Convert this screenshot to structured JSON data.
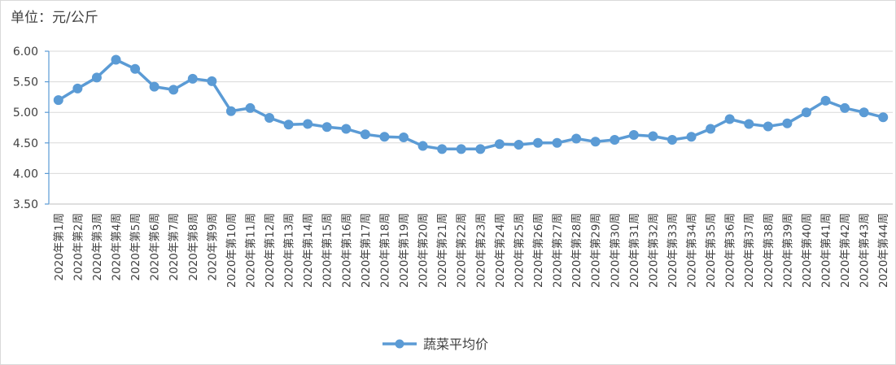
{
  "unit_label": "单位：元/公斤",
  "chart_data": {
    "type": "line",
    "title": "",
    "xlabel": "",
    "ylabel": "",
    "ylim": [
      3.5,
      6.0
    ],
    "yticks": [
      "6.00",
      "5.50",
      "5.00",
      "4.50",
      "4.00",
      "3.50"
    ],
    "grid": "horizontal",
    "legend": "bottom-center",
    "categories": [
      "2020年第1周",
      "2020年第2周",
      "2020年第3周",
      "2020年第4周",
      "2020年第5周",
      "2020年第6周",
      "2020年第7周",
      "2020年第8周",
      "2020年第9周",
      "2020年第10周",
      "2020年第11周",
      "2020年第12周",
      "2020年第13周",
      "2020年第14周",
      "2020年第15周",
      "2020年第16周",
      "2020年第17周",
      "2020年第18周",
      "2020年第19周",
      "2020年第20周",
      "2020年第21周",
      "2020年第22周",
      "2020年第23周",
      "2020年第24周",
      "2020年第25周",
      "2020年第26周",
      "2020年第27周",
      "2020年第28周",
      "2020年第29周",
      "2020年第30周",
      "2020年第31周",
      "2020年第32周",
      "2020年第33周",
      "2020年第34周",
      "2020年第35周",
      "2020年第36周",
      "2020年第37周",
      "2020年第38周",
      "2020年第39周",
      "2020年第40周",
      "2020年第41周",
      "2020年第42周",
      "2020年第43周",
      "2020年第44周"
    ],
    "series": [
      {
        "name": "蔬菜平均价",
        "color": "#5b9bd5",
        "values": [
          5.2,
          5.39,
          5.57,
          5.86,
          5.71,
          5.42,
          5.37,
          5.55,
          5.51,
          5.02,
          5.07,
          4.91,
          4.8,
          4.81,
          4.76,
          4.73,
          4.64,
          4.6,
          4.59,
          4.45,
          4.4,
          4.4,
          4.4,
          4.48,
          4.47,
          4.5,
          4.5,
          4.57,
          4.52,
          4.55,
          4.63,
          4.61,
          4.55,
          4.6,
          4.73,
          4.89,
          4.81,
          4.77,
          4.82,
          5.0,
          5.19,
          5.07,
          5.0,
          4.92
        ]
      }
    ]
  }
}
